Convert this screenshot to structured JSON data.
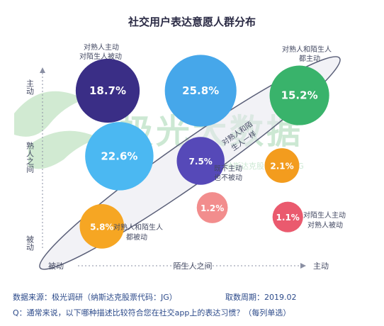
{
  "chart_data": {
    "type": "scatter",
    "title": "社交用户表达意愿人群分布",
    "xlabel": "陌生人之间",
    "ylabel": "熟人之间",
    "x_ticks": [
      "被动",
      "主动"
    ],
    "y_ticks": [
      "主动",
      "被动"
    ],
    "grid": false,
    "points": [
      {
        "label": "18.7%",
        "value": 18.7,
        "x": 1,
        "y": 4,
        "color": "#3a2e86",
        "note": "对熟人主动\n对陌生人被动"
      },
      {
        "label": "25.8%",
        "value": 25.8,
        "x": 2.6,
        "y": 4,
        "color": "#46a7ea",
        "note": ""
      },
      {
        "label": "15.2%",
        "value": 15.2,
        "x": 4.3,
        "y": 3.9,
        "color": "#39b36b",
        "note": "对熟人和陌生人\n都主动"
      },
      {
        "label": "22.6%",
        "value": 22.6,
        "x": 1.2,
        "y": 2.6,
        "color": "#4bb8f2",
        "note": ""
      },
      {
        "label": "7.5%",
        "value": 7.5,
        "x": 2.6,
        "y": 2.5,
        "color": "#5649b8",
        "note": "既不主动\n也不被动"
      },
      {
        "label": "2.1%",
        "value": 2.1,
        "x": 4.0,
        "y": 2.4,
        "color": "#f39c1e",
        "note": ""
      },
      {
        "label": "5.8%",
        "value": 5.8,
        "x": 0.9,
        "y": 1.1,
        "color": "#f6a623",
        "note": "对熟人和陌生人\n都被动"
      },
      {
        "label": "1.2%",
        "value": 1.2,
        "x": 2.8,
        "y": 1.5,
        "color": "#f28d8d",
        "note": ""
      },
      {
        "label": "1.1%",
        "value": 1.1,
        "x": 4.1,
        "y": 1.3,
        "color": "#ea5a6e",
        "note": "对陌生人主动\n对熟人被动"
      }
    ],
    "ellipse_label": "对熟人和陌\n生人一样",
    "watermark": "极光大数据",
    "watermark_sub": "纳斯达克股票代码：JG"
  },
  "footer": {
    "source": "数据来源：极光调研（纳斯达克股票代码：JG）",
    "period": "取数周期：2019.02",
    "question": "Q：通常来说，以下哪种描述比较符合您在社交app上的表达习惯？（每列单选）"
  }
}
